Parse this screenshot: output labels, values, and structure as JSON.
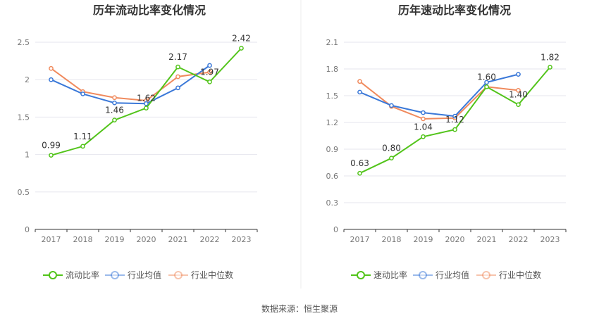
{
  "source_text": "数据来源：恒生聚源",
  "chart_data": [
    {
      "type": "line",
      "title": "历年流动比率变化情况",
      "categories": [
        "2017",
        "2018",
        "2019",
        "2020",
        "2021",
        "2022",
        "2023"
      ],
      "ylim": [
        0,
        2.5
      ],
      "yticks": [
        "0",
        "0.5",
        "1",
        "1.5",
        "2",
        "2.5"
      ],
      "grid": true,
      "legend": "bottom",
      "series": [
        {
          "name": "流动比率",
          "color": "#52c41a",
          "values": [
            0.99,
            1.11,
            1.46,
            1.62,
            2.17,
            1.97,
            2.42
          ],
          "labels": [
            "0.99",
            "1.11",
            "1.46",
            "1.62",
            "2.17",
            "1.97",
            "2.42"
          ]
        },
        {
          "name": "行业均值",
          "color": "#3a78d8",
          "values": [
            2.0,
            1.81,
            1.69,
            1.68,
            1.89,
            2.19,
            null
          ]
        },
        {
          "name": "行业中位数",
          "color": "#f08a5d",
          "values": [
            2.15,
            1.84,
            1.76,
            1.72,
            2.04,
            2.1,
            null
          ]
        }
      ]
    },
    {
      "type": "line",
      "title": "历年速动比率变化情况",
      "categories": [
        "2017",
        "2018",
        "2019",
        "2020",
        "2021",
        "2022",
        "2023"
      ],
      "ylim": [
        0,
        2.1
      ],
      "yticks": [
        "0",
        "0.3",
        "0.6",
        "0.9",
        "1.2",
        "1.5",
        "1.8",
        "2.1"
      ],
      "grid": true,
      "legend": "bottom",
      "series": [
        {
          "name": "速动比率",
          "color": "#52c41a",
          "values": [
            0.63,
            0.8,
            1.04,
            1.12,
            1.6,
            1.4,
            1.82
          ],
          "labels": [
            "0.63",
            "0.80",
            "1.04",
            "1.12",
            "1.60",
            "1.40",
            "1.82"
          ]
        },
        {
          "name": "行业均值",
          "color": "#3a78d8",
          "values": [
            1.54,
            1.39,
            1.31,
            1.27,
            1.65,
            1.74,
            null
          ]
        },
        {
          "name": "行业中位数",
          "color": "#f08a5d",
          "values": [
            1.66,
            1.38,
            1.24,
            1.25,
            1.6,
            1.56,
            null
          ]
        }
      ]
    }
  ]
}
